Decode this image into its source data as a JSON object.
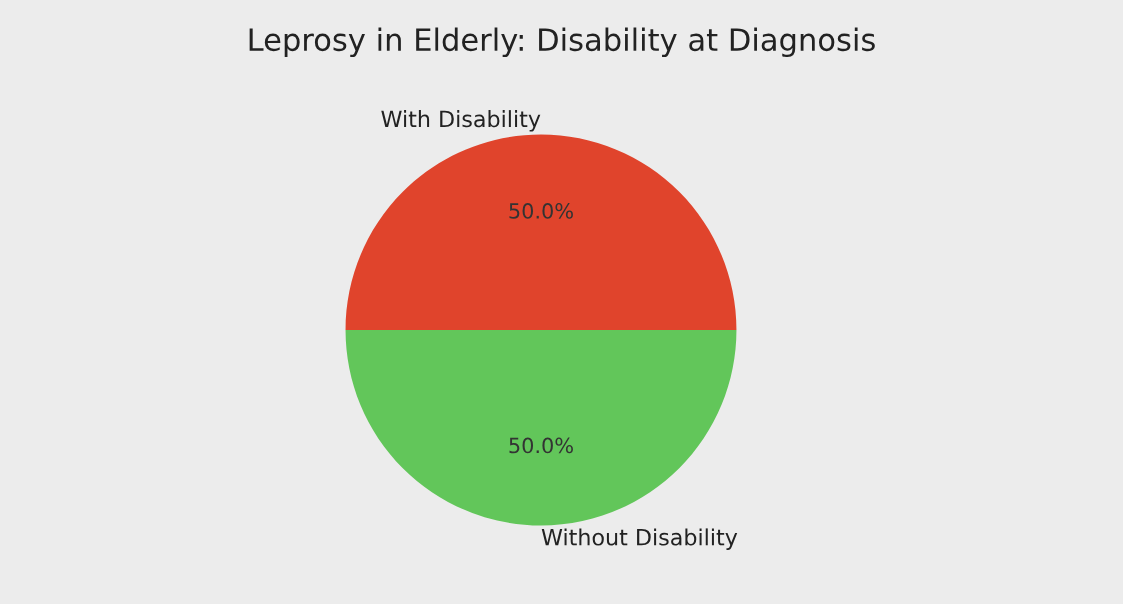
{
  "chart_data": {
    "type": "pie",
    "title": "Leprosy in Elderly: Disability at Diagnosis",
    "categories": [
      "With Disability",
      "Without Disability"
    ],
    "values": [
      50,
      50
    ],
    "colors": [
      "#e0442c",
      "#62c65a"
    ],
    "value_labels": [
      "50.0%",
      "50.0%"
    ]
  }
}
